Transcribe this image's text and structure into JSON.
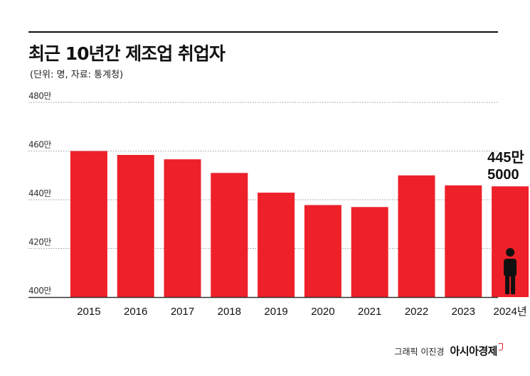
{
  "title": "최근 10년간 제조업 취업자",
  "subtitle": "(단위: 명, 자료: 통계청)",
  "footer": {
    "credit": "그래픽 이진경",
    "logo": "아시아경제"
  },
  "colors": {
    "bar": "#ee2029",
    "grid": "#999999",
    "axis": "#333333",
    "text": "#111111"
  },
  "chart_data": {
    "type": "bar",
    "categories": [
      "2015",
      "2016",
      "2017",
      "2018",
      "2019",
      "2020",
      "2021",
      "2022",
      "2023",
      "2024년"
    ],
    "values": [
      4600000,
      4584000,
      4566000,
      4510000,
      4429000,
      4378000,
      4370000,
      4500000,
      4459000,
      4455000
    ],
    "yticks": [
      {
        "value": 4000000,
        "label": "400만"
      },
      {
        "value": 4200000,
        "label": "420만"
      },
      {
        "value": 4400000,
        "label": "440만"
      },
      {
        "value": 4600000,
        "label": "460만"
      },
      {
        "value": 4800000,
        "label": "480만"
      }
    ],
    "ylim": [
      4000000,
      4800000
    ],
    "grid": true,
    "annotation": {
      "category": "2024년",
      "lines": [
        "445만",
        "5000"
      ],
      "icon": "person-icon"
    }
  }
}
